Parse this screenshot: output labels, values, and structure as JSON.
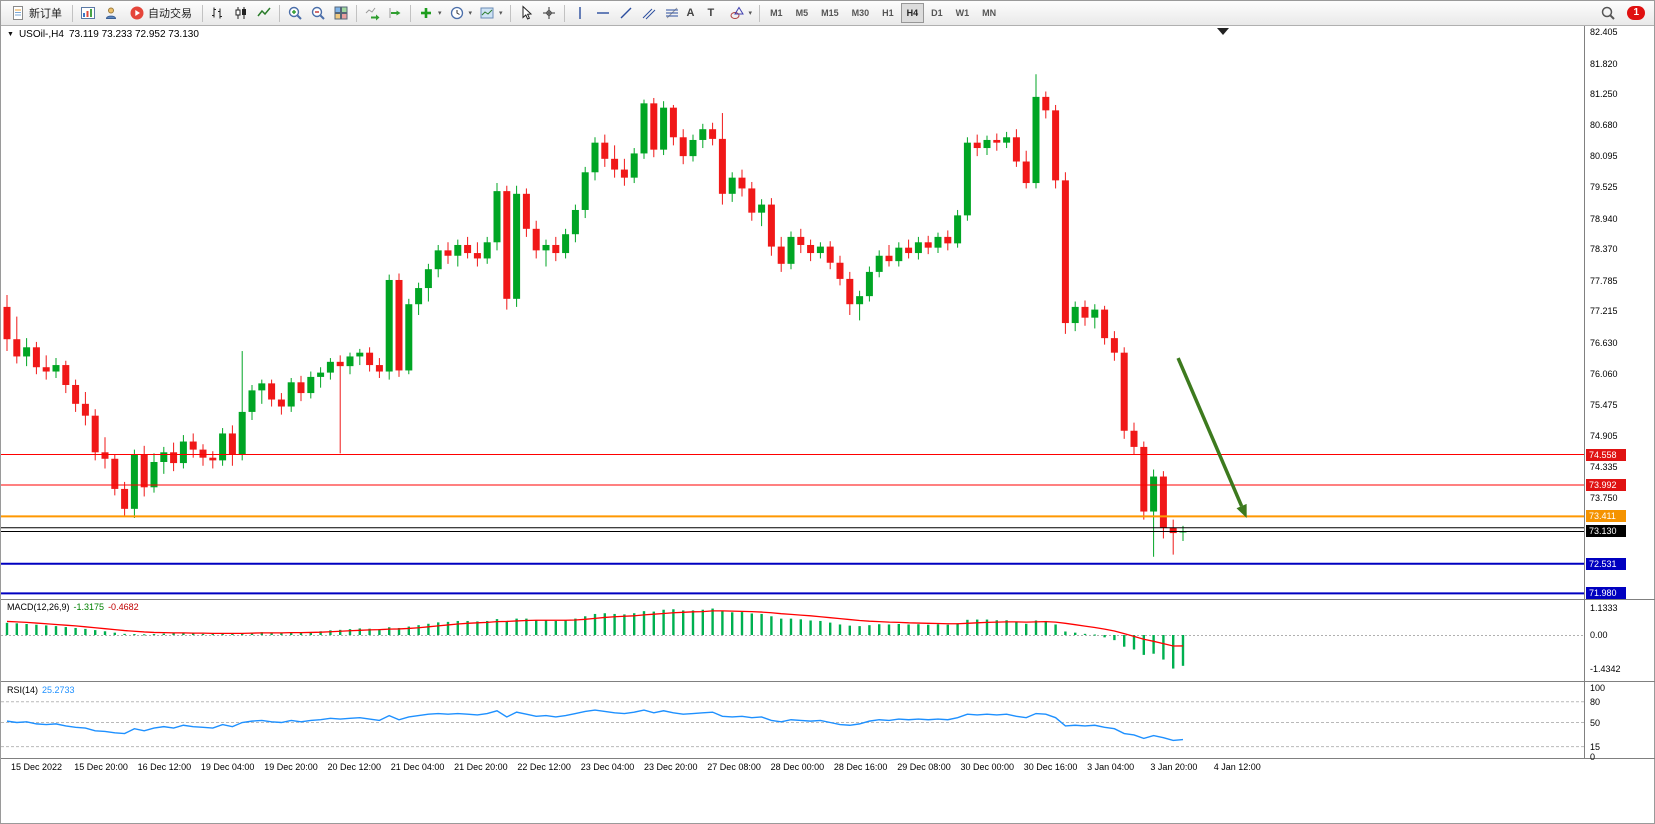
{
  "window": {
    "badge_count": "1"
  },
  "toolbar": {
    "new_order": "新订单",
    "auto_trading": "自动交易",
    "timeframes": [
      "M1",
      "M5",
      "M15",
      "M30",
      "H1",
      "H4",
      "D1",
      "W1",
      "MN"
    ],
    "active_timeframe": "H4"
  },
  "chart": {
    "symbol_label": "USOil-,H4",
    "ohlc_label": "73.119 73.233 72.952 73.130",
    "macd_name": "MACD(12,26,9)",
    "macd_value": "-1.3175",
    "macd_signal_value": "-0.4682",
    "rsi_name": "RSI(14)",
    "rsi_value": "25.2733"
  },
  "chart_data": {
    "type": "candlestick",
    "symbol": "USOil",
    "timeframe": "H4",
    "ohlc_current": {
      "open": 73.119,
      "high": 73.233,
      "low": 72.952,
      "close": 73.13
    },
    "up_color": "#00A524",
    "down_color": "#F01818",
    "price_axis_labels": [
      82.405,
      81.82,
      81.25,
      80.68,
      80.095,
      79.525,
      78.94,
      78.37,
      77.785,
      77.215,
      76.63,
      76.06,
      75.475,
      74.905,
      74.335,
      73.75
    ],
    "time_axis_labels": [
      "15 Dec 2022",
      "15 Dec 20:00",
      "16 Dec 12:00",
      "19 Dec 04:00",
      "19 Dec 20:00",
      "20 Dec 12:00",
      "21 Dec 04:00",
      "21 Dec 20:00",
      "22 Dec 12:00",
      "23 Dec 04:00",
      "23 Dec 20:00",
      "27 Dec 08:00",
      "28 Dec 00:00",
      "28 Dec 16:00",
      "29 Dec 08:00",
      "30 Dec 00:00",
      "30 Dec 16:00",
      "3 Jan 04:00",
      "3 Jan 20:00",
      "4 Jan 12:00"
    ],
    "hlines": [
      {
        "price": 74.558,
        "color": "#FF0000",
        "width": 1,
        "label": "74.558",
        "badge": "#E01212"
      },
      {
        "price": 73.992,
        "color": "#FF0000",
        "width": 1,
        "label": "73.992",
        "badge": "#E01212"
      },
      {
        "price": 73.411,
        "color": "#FF9800",
        "width": 2,
        "label": "73.411",
        "badge": "#F59300"
      },
      {
        "price": 73.2,
        "color": "#000000",
        "width": 1,
        "label": null,
        "badge": null
      },
      {
        "price": 72.531,
        "color": "#0000C0",
        "width": 2,
        "label": "72.531",
        "badge": "#0000C0"
      },
      {
        "price": 71.98,
        "color": "#0000C0",
        "width": 2,
        "label": "71.980",
        "badge": "#0000C0"
      }
    ],
    "current_price": {
      "value": 73.13,
      "label": "73.130",
      "badge": "#000000"
    },
    "trend_arrow": {
      "color": "#3D7A1E",
      "from_index": 119.5,
      "from_price": 76.35,
      "to_index": 126.5,
      "to_price": 73.38
    },
    "candles": [
      [
        77.3,
        77.52,
        76.48,
        76.7
      ],
      [
        76.7,
        77.12,
        76.25,
        76.38
      ],
      [
        76.38,
        76.72,
        76.2,
        76.55
      ],
      [
        76.55,
        76.65,
        76.05,
        76.18
      ],
      [
        76.18,
        76.4,
        75.95,
        76.1
      ],
      [
        76.1,
        76.35,
        75.98,
        76.22
      ],
      [
        76.22,
        76.3,
        75.7,
        75.85
      ],
      [
        75.85,
        75.95,
        75.35,
        75.5
      ],
      [
        75.5,
        75.72,
        75.1,
        75.28
      ],
      [
        75.28,
        75.4,
        74.45,
        74.6
      ],
      [
        74.6,
        74.88,
        74.3,
        74.48
      ],
      [
        74.48,
        74.55,
        73.8,
        73.92
      ],
      [
        73.92,
        74.05,
        73.42,
        73.55
      ],
      [
        73.55,
        74.65,
        73.38,
        74.55
      ],
      [
        74.55,
        74.72,
        73.78,
        73.95
      ],
      [
        73.95,
        74.58,
        73.85,
        74.42
      ],
      [
        74.42,
        74.7,
        74.2,
        74.6
      ],
      [
        74.6,
        74.78,
        74.25,
        74.4
      ],
      [
        74.4,
        74.92,
        74.3,
        74.8
      ],
      [
        74.8,
        74.95,
        74.5,
        74.65
      ],
      [
        74.65,
        74.75,
        74.35,
        74.5
      ],
      [
        74.5,
        74.62,
        74.3,
        74.45
      ],
      [
        74.45,
        75.05,
        74.35,
        74.95
      ],
      [
        74.95,
        75.1,
        74.35,
        74.55
      ],
      [
        74.55,
        76.48,
        74.45,
        75.35
      ],
      [
        75.35,
        75.85,
        75.2,
        75.75
      ],
      [
        75.75,
        75.95,
        75.5,
        75.88
      ],
      [
        75.88,
        75.95,
        75.45,
        75.58
      ],
      [
        75.58,
        75.7,
        75.3,
        75.45
      ],
      [
        75.45,
        75.98,
        75.35,
        75.9
      ],
      [
        75.9,
        76.02,
        75.55,
        75.7
      ],
      [
        75.7,
        76.1,
        75.6,
        76.0
      ],
      [
        76.0,
        76.18,
        75.8,
        76.08
      ],
      [
        76.08,
        76.35,
        75.95,
        76.28
      ],
      [
        76.28,
        76.4,
        74.58,
        76.2
      ],
      [
        76.2,
        76.45,
        76.05,
        76.38
      ],
      [
        76.38,
        76.52,
        76.22,
        76.45
      ],
      [
        76.45,
        76.55,
        76.1,
        76.22
      ],
      [
        76.22,
        76.35,
        75.98,
        76.1
      ],
      [
        76.1,
        77.9,
        75.95,
        77.8
      ],
      [
        77.8,
        77.92,
        76.0,
        76.12
      ],
      [
        76.12,
        77.45,
        76.05,
        77.35
      ],
      [
        77.35,
        77.75,
        77.15,
        77.65
      ],
      [
        77.65,
        78.1,
        77.4,
        78.0
      ],
      [
        78.0,
        78.45,
        77.85,
        78.35
      ],
      [
        78.35,
        78.5,
        78.1,
        78.25
      ],
      [
        78.25,
        78.55,
        78.05,
        78.45
      ],
      [
        78.45,
        78.6,
        78.2,
        78.3
      ],
      [
        78.3,
        78.5,
        78.05,
        78.2
      ],
      [
        78.2,
        78.6,
        78.1,
        78.5
      ],
      [
        78.5,
        79.6,
        78.35,
        79.45
      ],
      [
        79.45,
        79.55,
        77.25,
        77.45
      ],
      [
        77.45,
        79.55,
        77.3,
        79.4
      ],
      [
        79.4,
        79.5,
        78.6,
        78.75
      ],
      [
        78.75,
        78.9,
        78.2,
        78.35
      ],
      [
        78.35,
        78.55,
        78.05,
        78.45
      ],
      [
        78.45,
        78.6,
        78.15,
        78.3
      ],
      [
        78.3,
        78.75,
        78.2,
        78.65
      ],
      [
        78.65,
        79.2,
        78.5,
        79.1
      ],
      [
        79.1,
        79.9,
        78.95,
        79.8
      ],
      [
        79.8,
        80.45,
        79.65,
        80.35
      ],
      [
        80.35,
        80.5,
        79.9,
        80.05
      ],
      [
        80.05,
        80.3,
        79.7,
        79.85
      ],
      [
        79.85,
        80.05,
        79.55,
        79.7
      ],
      [
        79.7,
        80.25,
        79.6,
        80.15
      ],
      [
        80.15,
        81.15,
        80.05,
        81.08
      ],
      [
        81.08,
        81.18,
        80.08,
        80.22
      ],
      [
        80.22,
        81.12,
        80.12,
        81.0
      ],
      [
        81.0,
        81.05,
        80.3,
        80.45
      ],
      [
        80.45,
        80.6,
        79.95,
        80.1
      ],
      [
        80.1,
        80.5,
        80.0,
        80.4
      ],
      [
        80.4,
        80.7,
        80.25,
        80.6
      ],
      [
        80.6,
        80.72,
        80.3,
        80.42
      ],
      [
        80.42,
        80.9,
        79.2,
        79.4
      ],
      [
        79.4,
        79.8,
        79.25,
        79.7
      ],
      [
        79.7,
        79.85,
        79.35,
        79.5
      ],
      [
        79.5,
        79.62,
        78.9,
        79.05
      ],
      [
        79.05,
        79.3,
        78.8,
        79.2
      ],
      [
        79.2,
        79.32,
        78.25,
        78.42
      ],
      [
        78.42,
        78.6,
        77.95,
        78.1
      ],
      [
        78.1,
        78.7,
        78.0,
        78.6
      ],
      [
        78.6,
        78.75,
        78.3,
        78.45
      ],
      [
        78.45,
        78.55,
        78.15,
        78.3
      ],
      [
        78.3,
        78.5,
        78.2,
        78.42
      ],
      [
        78.42,
        78.52,
        78.0,
        78.12
      ],
      [
        78.12,
        78.25,
        77.7,
        77.82
      ],
      [
        77.82,
        77.95,
        77.15,
        77.35
      ],
      [
        77.35,
        77.6,
        77.05,
        77.5
      ],
      [
        77.5,
        78.05,
        77.4,
        77.95
      ],
      [
        77.95,
        78.35,
        77.85,
        78.25
      ],
      [
        78.25,
        78.45,
        78.05,
        78.15
      ],
      [
        78.15,
        78.5,
        78.05,
        78.4
      ],
      [
        78.4,
        78.55,
        78.2,
        78.3
      ],
      [
        78.3,
        78.6,
        78.18,
        78.5
      ],
      [
        78.5,
        78.62,
        78.28,
        78.4
      ],
      [
        78.4,
        78.68,
        78.3,
        78.6
      ],
      [
        78.6,
        78.72,
        78.35,
        78.48
      ],
      [
        78.48,
        79.1,
        78.4,
        79.0
      ],
      [
        79.0,
        80.45,
        78.9,
        80.35
      ],
      [
        80.35,
        80.5,
        80.1,
        80.25
      ],
      [
        80.25,
        80.48,
        80.12,
        80.4
      ],
      [
        80.4,
        80.52,
        80.2,
        80.35
      ],
      [
        80.35,
        80.55,
        80.25,
        80.45
      ],
      [
        80.45,
        80.6,
        79.9,
        80.0
      ],
      [
        80.0,
        80.2,
        79.5,
        79.6
      ],
      [
        79.6,
        81.62,
        79.5,
        81.2
      ],
      [
        81.2,
        81.3,
        80.8,
        80.95
      ],
      [
        80.95,
        81.05,
        79.5,
        79.65
      ],
      [
        79.65,
        79.8,
        76.8,
        77.0
      ],
      [
        77.0,
        77.4,
        76.85,
        77.3
      ],
      [
        77.3,
        77.42,
        76.95,
        77.1
      ],
      [
        77.1,
        77.35,
        76.9,
        77.25
      ],
      [
        77.25,
        77.32,
        76.6,
        76.72
      ],
      [
        76.72,
        76.85,
        76.3,
        76.45
      ],
      [
        76.45,
        76.55,
        74.85,
        75.0
      ],
      [
        75.0,
        75.15,
        74.55,
        74.7
      ],
      [
        74.7,
        74.8,
        73.35,
        73.5
      ],
      [
        73.5,
        74.28,
        72.66,
        74.15
      ],
      [
        74.15,
        74.25,
        73.0,
        73.2
      ],
      [
        73.2,
        73.35,
        72.7,
        73.1
      ],
      [
        73.119,
        73.233,
        72.952,
        73.13
      ]
    ],
    "macd": {
      "params": "12,26,9",
      "value": -1.3175,
      "signal_value": -0.4682,
      "axis_labels": [
        "1.1333",
        "0.00",
        "-1.4342"
      ],
      "max": 1.1333,
      "min": -1.4342,
      "histogram_color": "#00B050",
      "signal_color": "#FF0000",
      "histogram": [
        0.52,
        0.5,
        0.47,
        0.44,
        0.41,
        0.38,
        0.34,
        0.3,
        0.26,
        0.21,
        0.16,
        0.1,
        0.05,
        0.04,
        0.03,
        0.04,
        0.06,
        0.07,
        0.08,
        0.07,
        0.05,
        0.04,
        0.06,
        0.05,
        0.08,
        0.1,
        0.12,
        0.11,
        0.09,
        0.11,
        0.1,
        0.13,
        0.16,
        0.2,
        0.22,
        0.25,
        0.28,
        0.27,
        0.25,
        0.33,
        0.3,
        0.36,
        0.42,
        0.48,
        0.54,
        0.56,
        0.6,
        0.6,
        0.58,
        0.6,
        0.68,
        0.6,
        0.7,
        0.7,
        0.64,
        0.62,
        0.6,
        0.63,
        0.7,
        0.8,
        0.9,
        0.93,
        0.9,
        0.88,
        0.93,
        1.02,
        1.0,
        1.08,
        1.1,
        1.05,
        1.05,
        1.08,
        1.13,
        1.02,
        0.97,
        0.98,
        0.92,
        0.9,
        0.8,
        0.7,
        0.7,
        0.67,
        0.62,
        0.6,
        0.53,
        0.45,
        0.4,
        0.38,
        0.42,
        0.46,
        0.45,
        0.47,
        0.45,
        0.46,
        0.44,
        0.46,
        0.44,
        0.5,
        0.65,
        0.66,
        0.66,
        0.63,
        0.63,
        0.56,
        0.48,
        0.62,
        0.6,
        0.45,
        0.15,
        0.1,
        0.05,
        0.02,
        -0.1,
        -0.22,
        -0.5,
        -0.62,
        -0.85,
        -0.8,
        -1.05,
        -1.4342,
        -1.3175
      ],
      "signal": [
        0.58,
        0.56,
        0.54,
        0.51,
        0.48,
        0.45,
        0.42,
        0.39,
        0.35,
        0.31,
        0.27,
        0.23,
        0.19,
        0.16,
        0.13,
        0.11,
        0.1,
        0.09,
        0.09,
        0.08,
        0.08,
        0.07,
        0.07,
        0.07,
        0.07,
        0.08,
        0.09,
        0.09,
        0.09,
        0.1,
        0.1,
        0.11,
        0.12,
        0.14,
        0.16,
        0.18,
        0.2,
        0.22,
        0.23,
        0.25,
        0.26,
        0.28,
        0.31,
        0.35,
        0.39,
        0.43,
        0.47,
        0.5,
        0.52,
        0.54,
        0.57,
        0.58,
        0.6,
        0.62,
        0.63,
        0.63,
        0.63,
        0.63,
        0.64,
        0.67,
        0.71,
        0.75,
        0.78,
        0.8,
        0.82,
        0.86,
        0.89,
        0.92,
        0.95,
        0.97,
        0.99,
        1.0,
        1.03,
        1.03,
        1.02,
        1.01,
        1.0,
        0.98,
        0.95,
        0.91,
        0.88,
        0.85,
        0.82,
        0.78,
        0.74,
        0.7,
        0.66,
        0.62,
        0.59,
        0.57,
        0.55,
        0.54,
        0.52,
        0.51,
        0.5,
        0.49,
        0.48,
        0.48,
        0.5,
        0.52,
        0.54,
        0.55,
        0.56,
        0.56,
        0.55,
        0.56,
        0.57,
        0.55,
        0.5,
        0.44,
        0.38,
        0.32,
        0.25,
        0.17,
        0.06,
        -0.06,
        -0.18,
        -0.27,
        -0.37,
        -0.47,
        -0.4682
      ]
    },
    "rsi": {
      "period": 14,
      "value": 25.2733,
      "axis_labels": [
        "100",
        "80",
        "50",
        "15",
        "0"
      ],
      "levels": [
        80,
        50,
        15
      ],
      "line_color": "#1E90FF",
      "values": [
        52,
        50,
        51,
        48,
        47,
        48,
        45,
        43,
        42,
        38,
        37,
        35,
        34,
        41,
        38,
        42,
        44,
        42,
        46,
        44,
        43,
        42,
        47,
        44,
        50,
        52,
        53,
        51,
        50,
        53,
        51,
        53,
        54,
        56,
        55,
        56,
        57,
        55,
        53,
        60,
        54,
        58,
        60,
        62,
        63,
        62,
        63,
        62,
        61,
        63,
        67,
        58,
        65,
        62,
        59,
        60,
        58,
        60,
        63,
        66,
        68,
        66,
        64,
        63,
        65,
        68,
        64,
        67,
        64,
        62,
        63,
        64,
        65,
        59,
        58,
        59,
        57,
        58,
        53,
        51,
        54,
        53,
        52,
        53,
        50,
        47,
        46,
        48,
        52,
        54,
        53,
        55,
        54,
        55,
        54,
        55,
        54,
        57,
        62,
        61,
        62,
        61,
        62,
        59,
        57,
        63,
        62,
        57,
        45,
        46,
        45,
        46,
        43,
        41,
        34,
        32,
        27,
        31,
        28,
        24,
        25.27
      ]
    }
  }
}
